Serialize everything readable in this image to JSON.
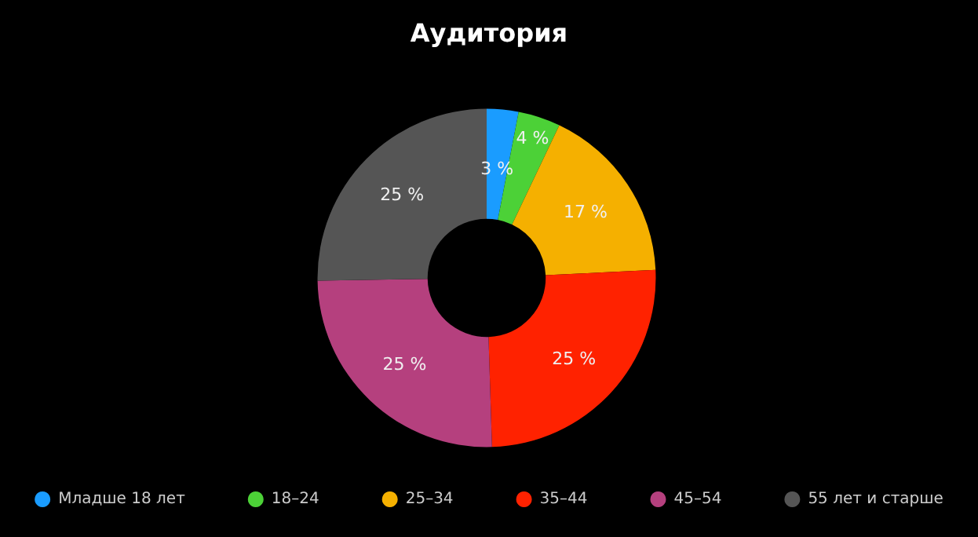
{
  "chart_data": {
    "type": "donut",
    "title": "Аудитория",
    "categories": [
      "Младше 18 лет",
      "18–24",
      "25–34",
      "35–44",
      "45–54",
      "55 лет и старше"
    ],
    "values": [
      3,
      4,
      17,
      25,
      25,
      25
    ],
    "value_labels": [
      "3 %",
      "4 %",
      "17 %",
      "25 %",
      "25 %",
      "25 %"
    ],
    "colors": [
      "#1a9cff",
      "#4cd137",
      "#f5b000",
      "#ff2200",
      "#b5407e",
      "#555555"
    ],
    "legend": "bottom"
  }
}
